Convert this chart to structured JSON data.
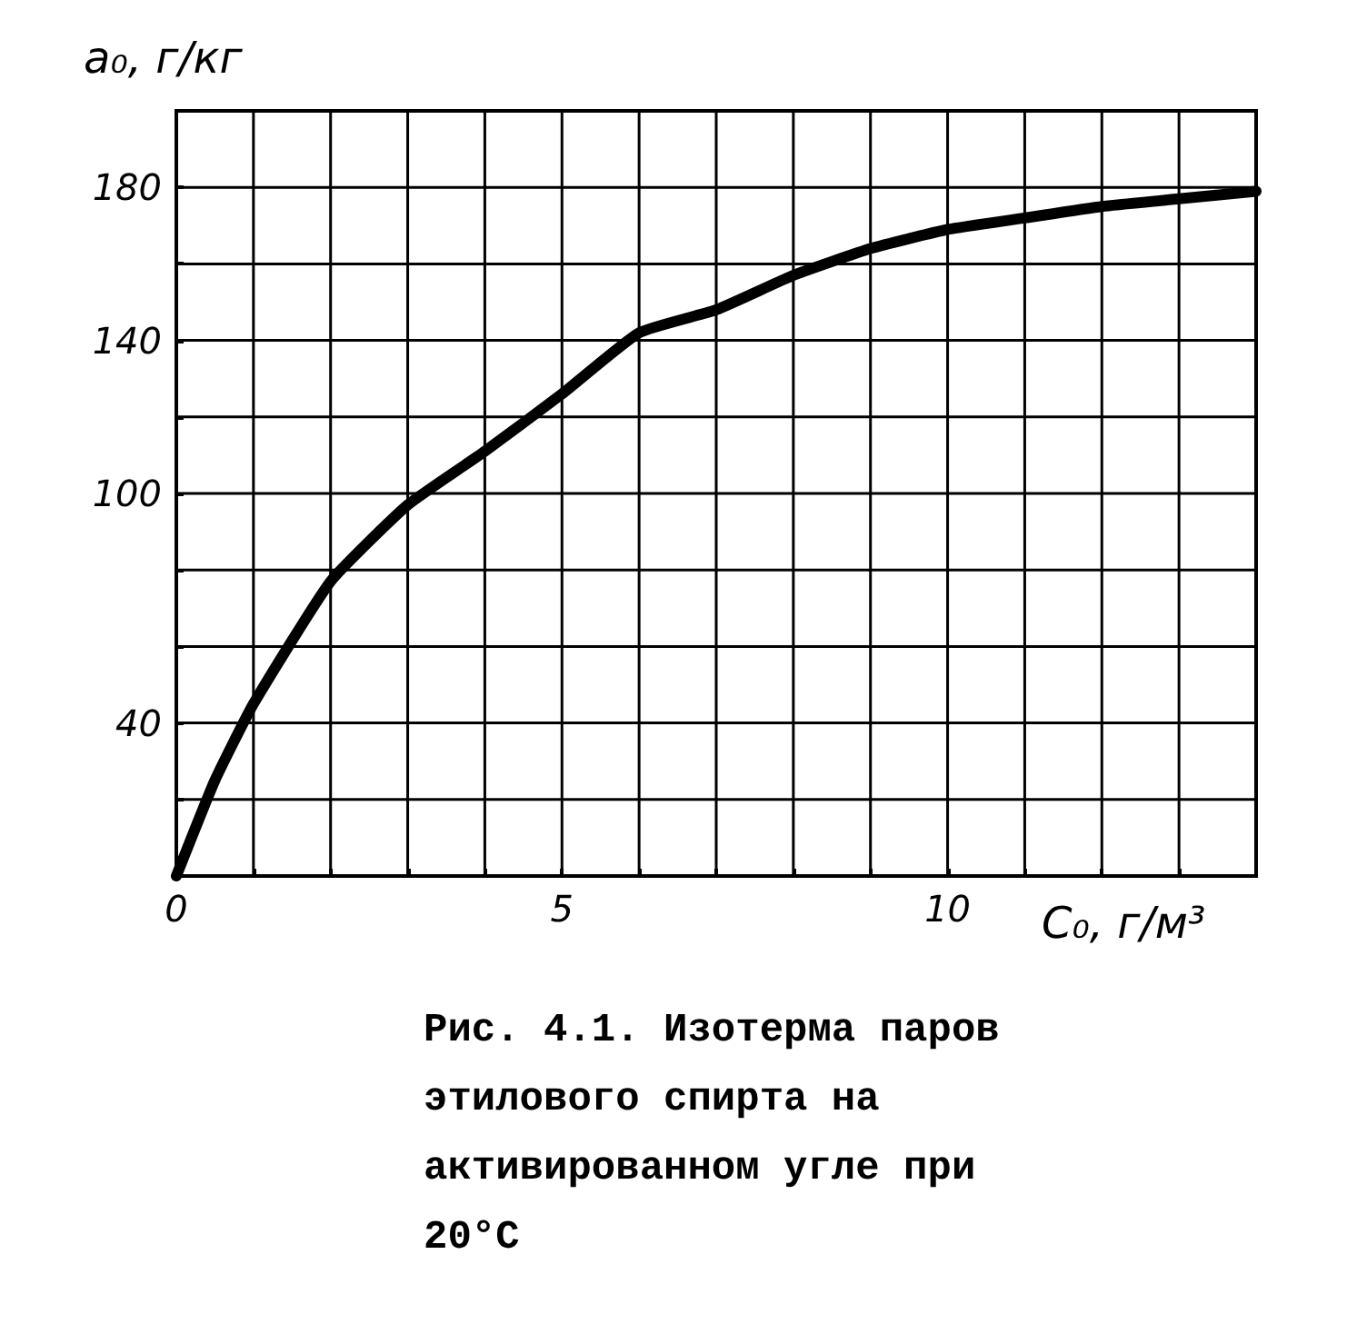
{
  "chart_data": {
    "type": "line",
    "xlabel": "C₀, г/м³",
    "ylabel": "a₀, г/кг",
    "annotations": [
      "Рис. 4.1. Изотерма паров этилового спирта на активированном угле при 20°С"
    ],
    "x": [
      0,
      0.5,
      1,
      2,
      3,
      4,
      5,
      6,
      7,
      8,
      9,
      10,
      11,
      12,
      13,
      14
    ],
    "series": [
      {
        "color": "#000000",
        "values": [
          0,
          25,
          45,
          77,
          97,
          111,
          126,
          142,
          148,
          157,
          164,
          169,
          172,
          175,
          177,
          179
        ]
      }
    ],
    "xlim": [
      0,
      14
    ],
    "ylim": [
      0,
      200
    ],
    "xticks": [
      0,
      {
        "value": 1,
        "label": null
      },
      {
        "value": 2,
        "label": null
      },
      {
        "value": 3,
        "label": null
      },
      {
        "value": 4,
        "label": null
      },
      5,
      {
        "value": 6,
        "label": null
      },
      {
        "value": 7,
        "label": null
      },
      {
        "value": 8,
        "label": null
      },
      {
        "value": 9,
        "label": null
      },
      10,
      {
        "value": 11,
        "label": null
      },
      {
        "value": 12,
        "label": null
      },
      {
        "value": 13,
        "label": null
      }
    ],
    "yticks": [
      {
        "value": 20,
        "label": null
      },
      40,
      {
        "value": 60,
        "label": null
      },
      {
        "value": 80,
        "label": null
      },
      100,
      {
        "value": 120,
        "label": null
      },
      140,
      {
        "value": 160,
        "label": null
      },
      180
    ],
    "grid": true,
    "marker": "none",
    "line_style": "solid"
  }
}
